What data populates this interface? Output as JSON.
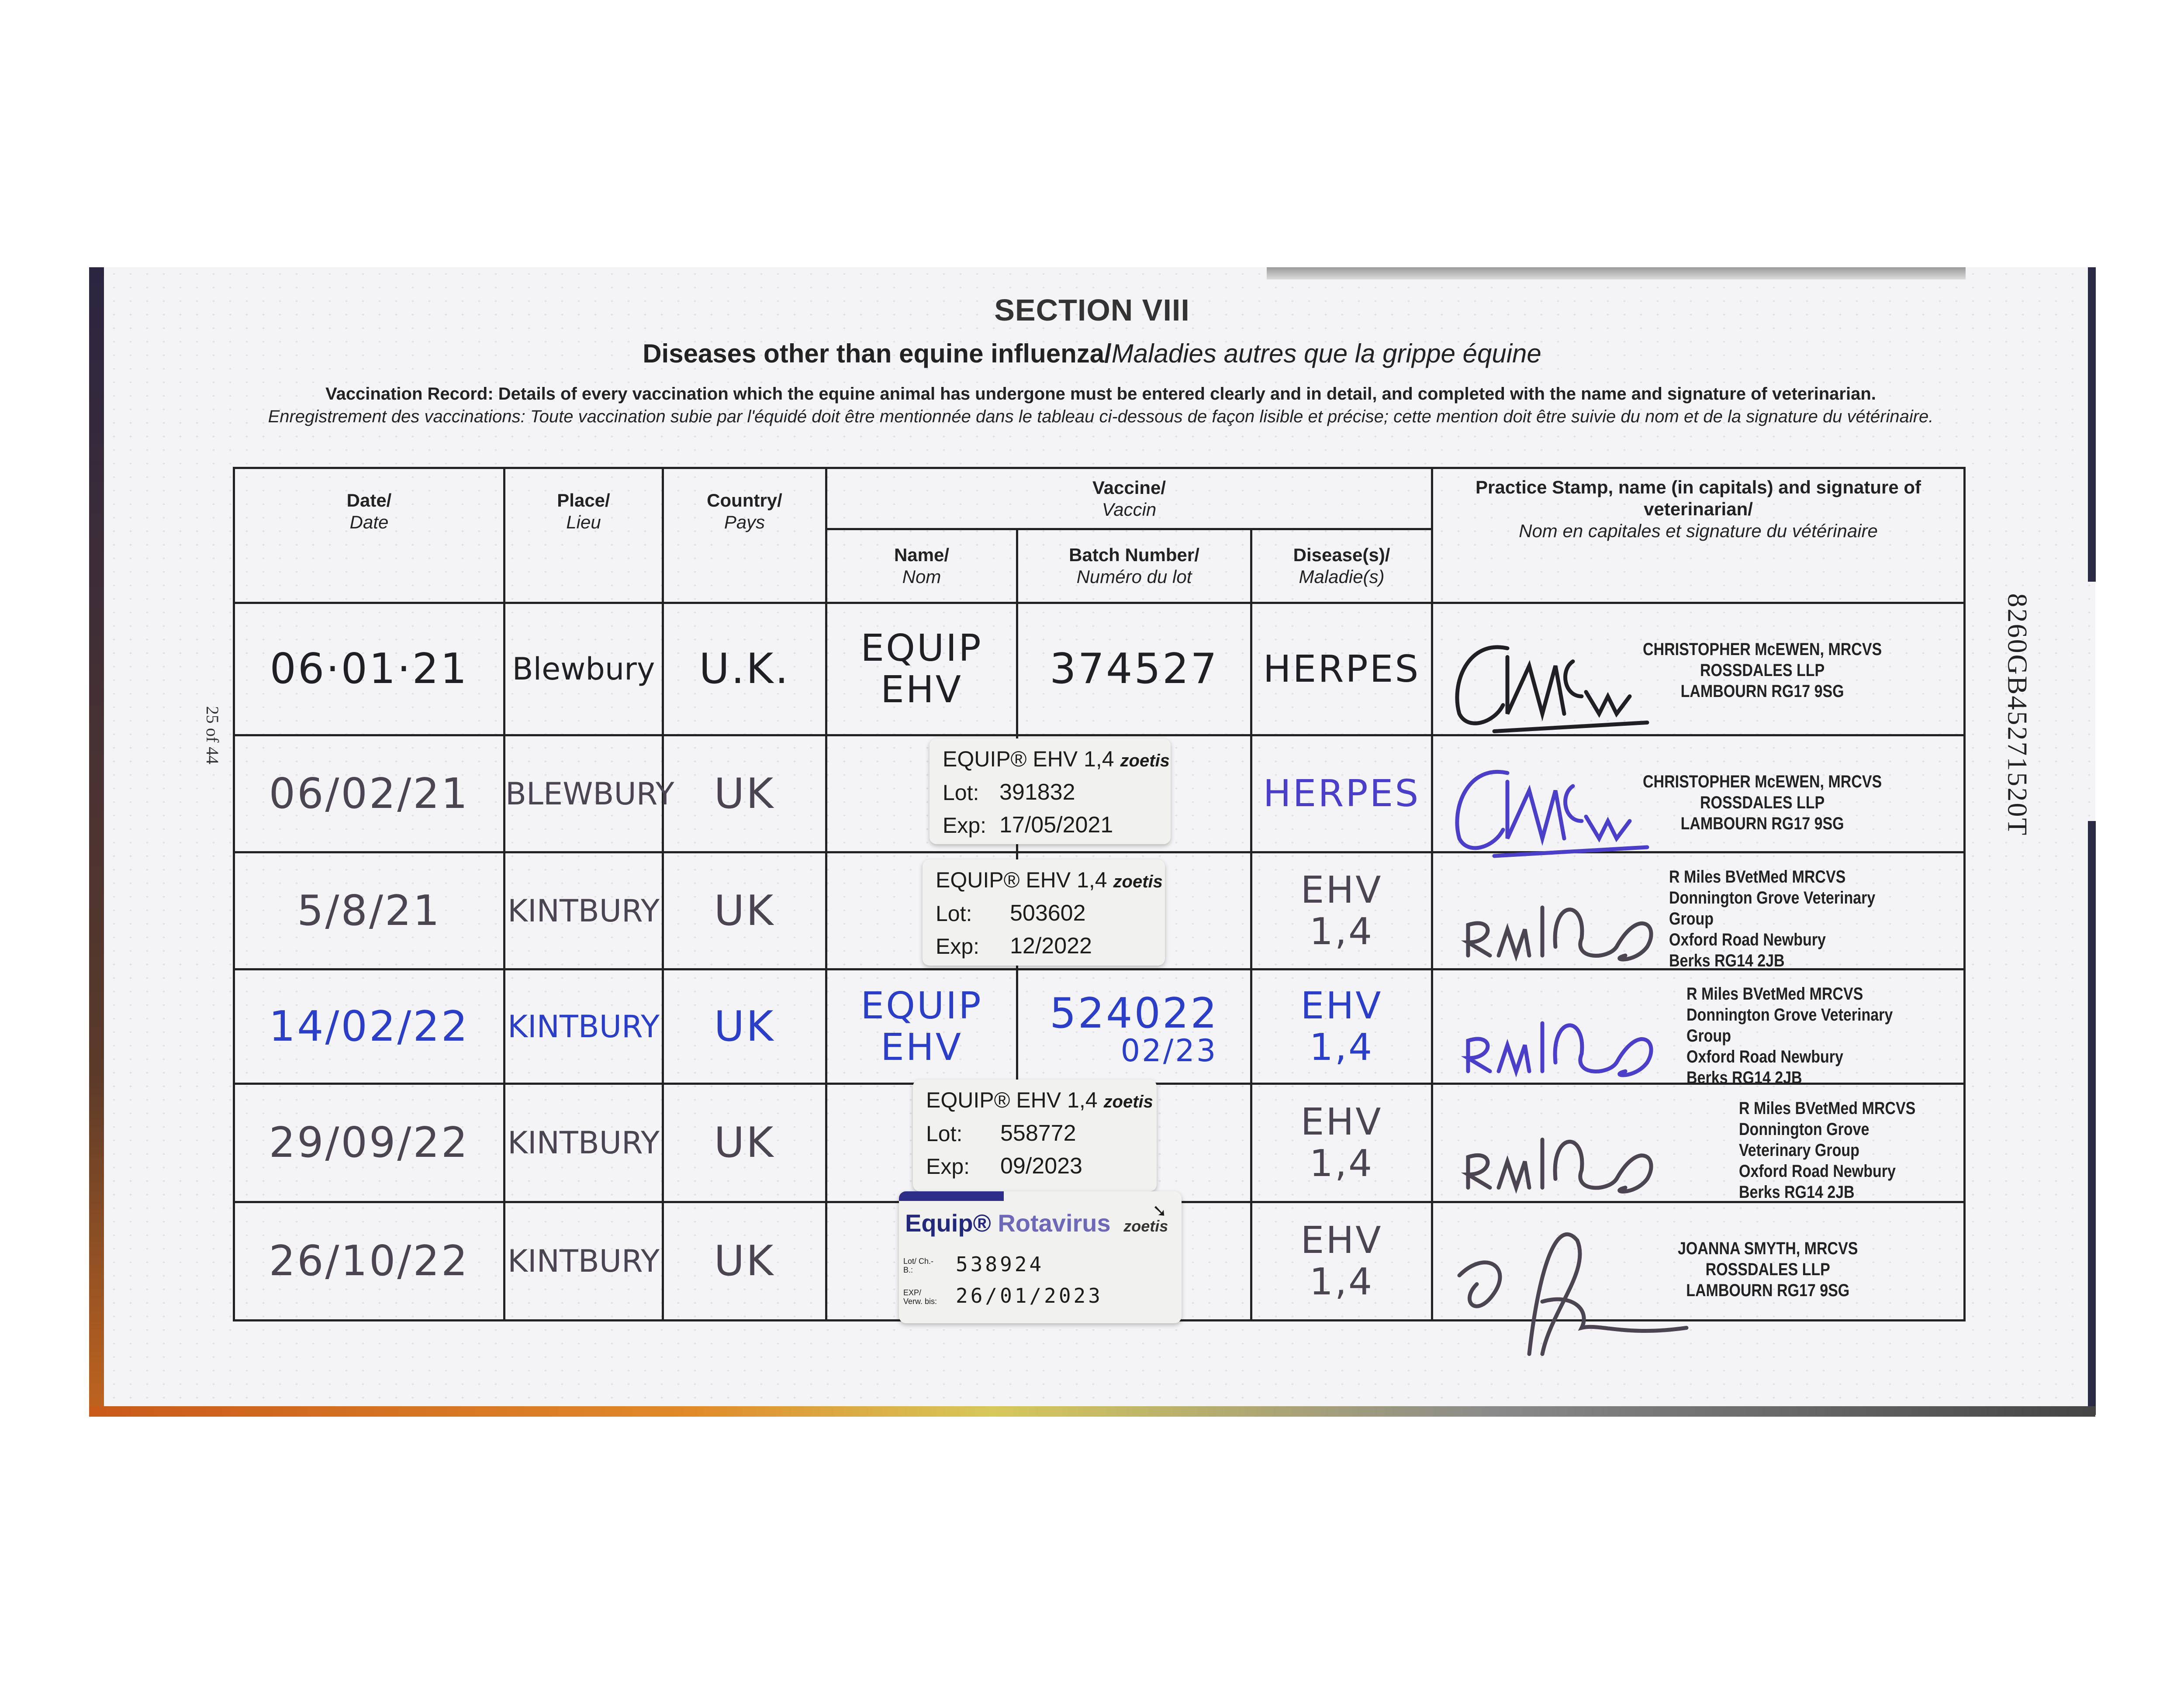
{
  "section": "SECTION VIII",
  "subtitle_en": "Diseases other than equine influenza/",
  "subtitle_fr": "Maladies autres que la grippe équine",
  "instruction_en": "Vaccination Record: Details of every vaccination which the equine animal has undergone must be entered clearly and in detail, and completed with the name and signature of veterinarian.",
  "instruction_fr": "Enregistrement des vaccinations: Toute vaccination subie par l'équidé doit être mentionnée dans le tableau ci-dessous de façon lisible et précise; cette mention doit être suivie du nom et de la signature du vétérinaire.",
  "page_marker": "25 of 44",
  "document_number": "8260GB45271520T",
  "headers": {
    "date": {
      "en": "Date/",
      "fr": "Date"
    },
    "place": {
      "en": "Place/",
      "fr": "Lieu"
    },
    "country": {
      "en": "Country/",
      "fr": "Pays"
    },
    "vaccine": {
      "en": "Vaccine/",
      "fr": "Vaccin"
    },
    "name": {
      "en": "Name/",
      "fr": "Nom"
    },
    "batch": {
      "en": "Batch Number/",
      "fr": "Numéro du lot"
    },
    "disease": {
      "en": "Disease(s)/",
      "fr": "Maladie(s)"
    },
    "vet": {
      "en": "Practice Stamp, name (in capitals) and signature of veterinarian/",
      "fr": "Nom en capitales et signature du vétérinaire"
    }
  },
  "rows": [
    {
      "date": "06·01·21",
      "place": "Blewbury",
      "country": "U.K.",
      "name": "EQUIP EHV",
      "batch": "374527",
      "batch2": "",
      "disease": "HERPES",
      "ink": "black",
      "stamp": [
        "CHRISTOPHER McEWEN, MRCVS",
        "ROSSDALES LLP",
        "LAMBOURN RG17 9SG"
      ]
    },
    {
      "date": "06/02/21",
      "place": "BLEWBURY",
      "country": "UK",
      "name": "",
      "batch": "",
      "batch2": "",
      "disease": "HERPES",
      "ink": "grey",
      "stamp": [
        "CHRISTOPHER McEWEN, MRCVS",
        "ROSSDALES LLP",
        "LAMBOURN RG17 9SG"
      ]
    },
    {
      "date": "5/8/21",
      "place": "KINTBURY",
      "country": "UK",
      "name": "",
      "batch": "",
      "batch2": "",
      "disease": "EHV 1,4",
      "ink": "grey",
      "stamp": [
        "R Miles BVetMed MRCVS",
        "Donnington Grove Veterinary Group",
        "Oxford Road Newbury",
        "Berks  RG14 2JB"
      ]
    },
    {
      "date": "14/02/22",
      "place": "KINTBURY",
      "country": "UK",
      "name": "EQUIP EHV",
      "batch": "524022",
      "batch2": "02/23",
      "disease": "EHV 1,4",
      "ink": "blue",
      "stamp": [
        "R Miles BVetMed MRCVS",
        "Donnington Grove Veterinary Group",
        "Oxford Road Newbury",
        "Berks  RG14 2JB"
      ]
    },
    {
      "date": "29/09/22",
      "place": "KINTBURY",
      "country": "UK",
      "name": "",
      "batch": "",
      "batch2": "",
      "disease": "EHV 1,4",
      "ink": "grey",
      "stamp": [
        "R Miles BVetMed MRCVS",
        "Donnington Grove Veterinary Group",
        "Oxford Road Newbury",
        "Berks  RG14 2JB"
      ]
    },
    {
      "date": "26/10/22",
      "place": "KINTBURY",
      "country": "UK",
      "name": "",
      "batch": "",
      "batch2": "",
      "disease": "EHV 1,4",
      "ink": "grey",
      "stamp": [
        "JOANNA SMYTH, MRCVS",
        "ROSSDALES LLP",
        "LAMBOURN RG17 9SG"
      ]
    }
  ],
  "stickers": [
    {
      "product": "EQUIP® EHV 1,4",
      "brand": "zoetis",
      "lot_label": "Lot:",
      "lot": "391832",
      "exp_label": "Exp:",
      "exp": "17/05/2021"
    },
    {
      "product": "EQUIP® EHV 1,4",
      "brand": "zoetis",
      "lot_label": "Lot:",
      "lot": "503602",
      "exp_label": "Exp:",
      "exp": "12/2022"
    },
    {
      "product": "EQUIP® EHV 1,4",
      "brand": "zoetis",
      "lot_label": "Lot:",
      "lot": "558772",
      "exp_label": "Exp:",
      "exp": "09/2023"
    }
  ],
  "rotavirus_sticker": {
    "product": "Equip®",
    "product2": "Rotavirus",
    "brand": "zoetis",
    "lot_label": "Lot/ Ch.-B.:",
    "lot": "538924",
    "exp_label": "EXP/ Verw. bis:",
    "exp": "26/01/2023"
  },
  "ink_colors": {
    "black": "#1f1f24",
    "grey": "#4a4550",
    "blue": "#2a3ec8",
    "violet": "#4b3fc9"
  }
}
